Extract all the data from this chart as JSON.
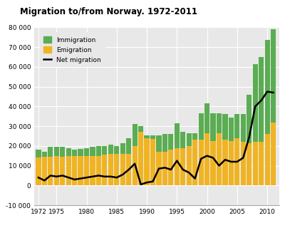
{
  "title": "Migration to/from Norway. 1972-2011",
  "years": [
    1972,
    1973,
    1974,
    1975,
    1976,
    1977,
    1978,
    1979,
    1980,
    1981,
    1982,
    1983,
    1984,
    1985,
    1986,
    1987,
    1988,
    1989,
    1990,
    1991,
    1992,
    1993,
    1994,
    1995,
    1996,
    1997,
    1998,
    1999,
    2000,
    2001,
    2002,
    2003,
    2004,
    2005,
    2006,
    2007,
    2008,
    2009,
    2010,
    2011
  ],
  "immigration": [
    18000,
    17000,
    19500,
    19500,
    19500,
    19000,
    18000,
    18500,
    19000,
    19500,
    20000,
    20000,
    20500,
    20000,
    21500,
    24000,
    31000,
    30000,
    25500,
    25500,
    25500,
    26000,
    26000,
    31500,
    27000,
    26500,
    26500,
    36500,
    41500,
    36500,
    36500,
    36000,
    34500,
    36000,
    36000,
    46000,
    61500,
    65000,
    73500,
    79000
  ],
  "emigration": [
    14000,
    14500,
    14500,
    15000,
    14500,
    15000,
    15000,
    15000,
    15000,
    15000,
    15000,
    15500,
    16000,
    16000,
    16000,
    16000,
    20000,
    27000,
    24000,
    23500,
    17000,
    17000,
    18000,
    19000,
    19000,
    20000,
    23000,
    23000,
    26500,
    22500,
    26500,
    23000,
    22500,
    24000,
    22000,
    21500,
    22000,
    22000,
    26000,
    32000
  ],
  "net_migration": [
    4000,
    2500,
    5000,
    4500,
    5000,
    4000,
    3000,
    3500,
    4000,
    4500,
    5000,
    4500,
    4500,
    4000,
    5500,
    8000,
    11000,
    500,
    1500,
    2000,
    8500,
    9000,
    8000,
    12500,
    8000,
    6500,
    3500,
    13500,
    15000,
    14000,
    10000,
    13000,
    12000,
    12000,
    14000,
    24500,
    40000,
    43000,
    47500,
    47000
  ],
  "immigration_color": "#5aad52",
  "emigration_color": "#f0b423",
  "net_migration_color": "#000000",
  "ylim": [
    -10000,
    80000
  ],
  "yticks": [
    -10000,
    0,
    10000,
    20000,
    30000,
    40000,
    50000,
    60000,
    70000,
    80000
  ],
  "ytick_labels": [
    "-10 000",
    "0",
    "10 000",
    "20 000",
    "30 000",
    "40 000",
    "50 000",
    "60 000",
    "70 000",
    "80 000"
  ],
  "xticks": [
    1972,
    1975,
    1980,
    1985,
    1990,
    1995,
    2000,
    2005,
    2010
  ],
  "background_color": "#e8e8e8",
  "bar_width": 0.85
}
